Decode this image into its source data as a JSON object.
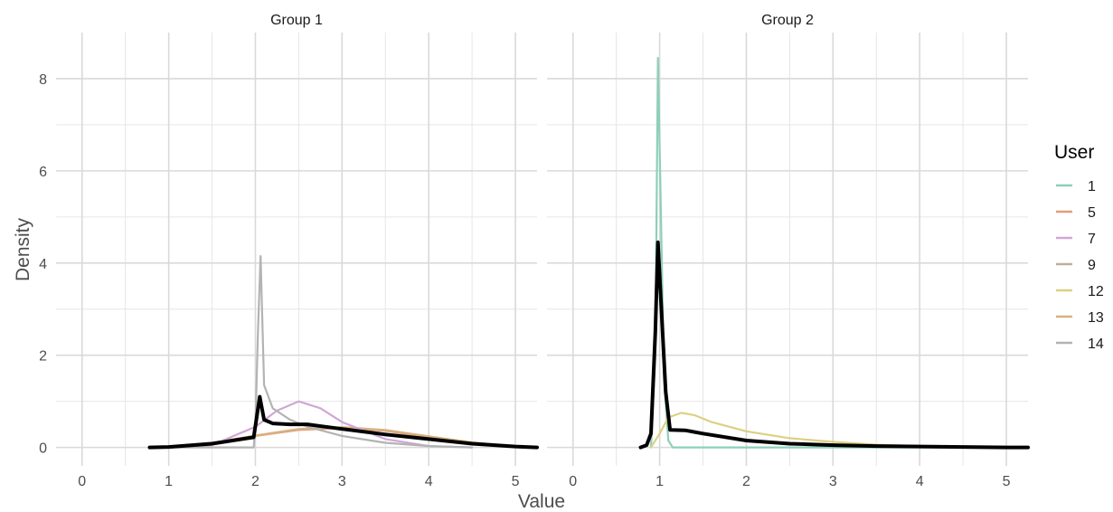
{
  "chart_data": {
    "type": "line",
    "panels": [
      "Group 1",
      "Group 2"
    ],
    "xlabel": "Value",
    "ylabel": "Density",
    "xlim": [
      -0.3,
      5.25
    ],
    "ylim": [
      -0.4,
      9.0
    ],
    "x_ticks": [
      0,
      1,
      2,
      3,
      4,
      5
    ],
    "y_ticks": [
      0,
      2,
      4,
      6,
      8
    ],
    "grid": true,
    "legend": {
      "title": "User",
      "position": "right",
      "entries": [
        {
          "label": "1",
          "color": "#8ecfb8"
        },
        {
          "label": "5",
          "color": "#dfa07c"
        },
        {
          "label": "7",
          "color": "#d1a6d7"
        },
        {
          "label": "9",
          "color": "#c0ae98"
        },
        {
          "label": "12",
          "color": "#dcd083"
        },
        {
          "label": "13",
          "color": "#d9b17e"
        },
        {
          "label": "14",
          "color": "#b3b3b3"
        }
      ]
    },
    "series": [
      {
        "name": "5",
        "panel": "Group 1",
        "color": "#dfa07c",
        "x": [
          0.78,
          1.0,
          1.5,
          2.0,
          2.5,
          3.0,
          3.5,
          4.0,
          4.5,
          5.0,
          5.25
        ],
        "y": [
          0.0,
          0.02,
          0.1,
          0.25,
          0.38,
          0.42,
          0.36,
          0.22,
          0.1,
          0.02,
          0.0
        ]
      },
      {
        "name": "13",
        "panel": "Group 1",
        "color": "#d9b17e",
        "x": [
          0.78,
          1.0,
          1.5,
          2.0,
          2.5,
          3.0,
          3.5,
          4.0,
          4.5,
          5.0,
          5.25
        ],
        "y": [
          0.0,
          0.02,
          0.1,
          0.26,
          0.4,
          0.44,
          0.38,
          0.24,
          0.11,
          0.02,
          0.0
        ]
      },
      {
        "name": "7",
        "panel": "Group 1",
        "color": "#d1a6d7",
        "x": [
          1.0,
          1.5,
          2.0,
          2.25,
          2.5,
          2.75,
          3.0,
          3.5,
          4.0,
          4.5
        ],
        "y": [
          0.0,
          0.05,
          0.45,
          0.8,
          1.0,
          0.85,
          0.55,
          0.18,
          0.03,
          0.0
        ]
      },
      {
        "name": "14",
        "panel": "Group 1",
        "color": "#b3b3b3",
        "x": [
          0.78,
          1.98,
          2.0,
          2.03,
          2.06,
          2.1,
          2.2,
          2.4,
          2.6,
          3.0,
          3.5,
          4.0,
          4.5
        ],
        "y": [
          0.0,
          0.0,
          0.5,
          2.5,
          4.15,
          1.35,
          0.85,
          0.6,
          0.45,
          0.25,
          0.1,
          0.03,
          0.0
        ]
      },
      {
        "name": "1",
        "panel": "Group 2",
        "color": "#8ecfb8",
        "x": [
          0.9,
          0.95,
          0.98,
          1.0,
          1.05,
          1.1,
          1.15,
          1.5,
          2.0,
          3.0,
          4.0,
          5.0,
          5.25
        ],
        "y": [
          0.0,
          2.0,
          8.45,
          6.5,
          1.5,
          0.15,
          0.0,
          0.0,
          0.0,
          0.0,
          0.0,
          0.0,
          0.0
        ]
      },
      {
        "name": "12",
        "panel": "Group 2",
        "color": "#dcd083",
        "x": [
          0.9,
          1.0,
          1.1,
          1.25,
          1.4,
          1.6,
          2.0,
          2.5,
          3.0,
          3.5,
          4.0,
          4.5,
          5.0,
          5.25
        ],
        "y": [
          0.0,
          0.3,
          0.65,
          0.75,
          0.7,
          0.55,
          0.35,
          0.2,
          0.12,
          0.06,
          0.03,
          0.01,
          0.0,
          0.0
        ]
      },
      {
        "name": "",
        "panel": "Group 1",
        "color": "#000000",
        "linewidth": 4,
        "x": [
          0.78,
          1.0,
          1.5,
          1.98,
          2.05,
          2.1,
          2.2,
          2.4,
          2.6,
          2.8,
          3.0,
          3.5,
          4.0,
          4.5,
          5.0,
          5.25
        ],
        "y": [
          0.0,
          0.01,
          0.08,
          0.22,
          1.1,
          0.6,
          0.52,
          0.5,
          0.5,
          0.45,
          0.4,
          0.28,
          0.18,
          0.08,
          0.02,
          0.0
        ]
      },
      {
        "name": "",
        "panel": "Group 2",
        "color": "#000000",
        "linewidth": 4,
        "x": [
          0.78,
          0.85,
          0.9,
          0.95,
          0.98,
          1.02,
          1.07,
          1.12,
          1.3,
          1.5,
          2.0,
          2.5,
          3.0,
          3.5,
          4.0,
          4.5,
          5.0,
          5.25
        ],
        "y": [
          0.0,
          0.05,
          0.3,
          2.5,
          4.45,
          3.0,
          1.2,
          0.38,
          0.37,
          0.3,
          0.15,
          0.08,
          0.05,
          0.03,
          0.02,
          0.01,
          0.0,
          0.0
        ]
      }
    ]
  }
}
